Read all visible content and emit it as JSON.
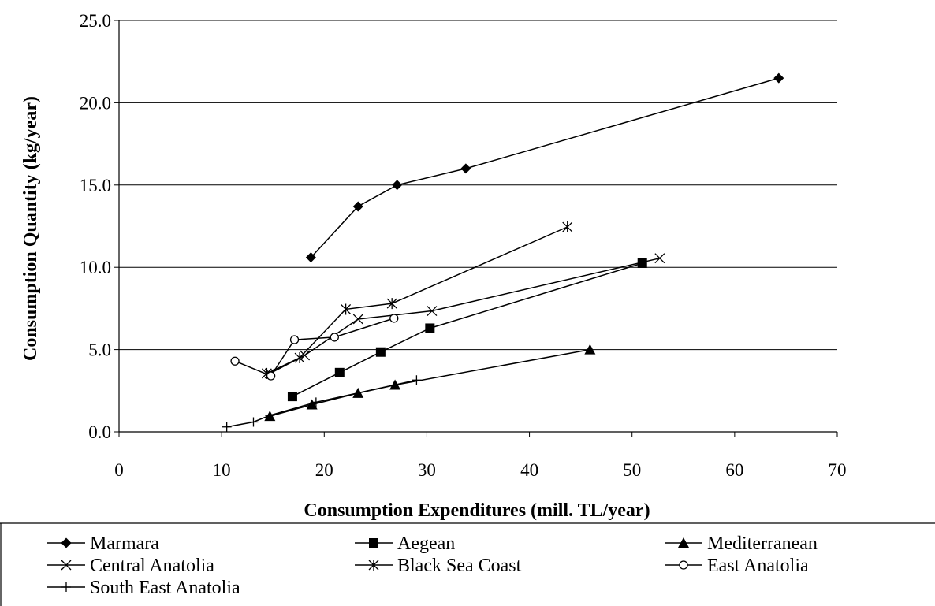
{
  "chart_data": {
    "type": "line",
    "title": "",
    "xlabel": "Consumption Expenditures (mill. TL/year)",
    "ylabel": "Consumption Quantity (kg/year)",
    "xlim": [
      0,
      70
    ],
    "ylim": [
      0,
      25
    ],
    "x_ticks": [
      "0",
      "10",
      "20",
      "30",
      "40",
      "50",
      "60",
      "70"
    ],
    "y_ticks": [
      "0.0",
      "5.0",
      "10.0",
      "15.0",
      "20.0",
      "25.0"
    ],
    "grid": "horizontal major",
    "legend_position": "bottom",
    "line_color": "#000000",
    "series": [
      {
        "name": "Marmara",
        "marker": "diamond",
        "x": [
          18.7,
          23.3,
          27.1,
          33.8,
          64.3
        ],
        "y": [
          10.6,
          13.7,
          15.0,
          16.0,
          21.5
        ]
      },
      {
        "name": "Aegean",
        "marker": "square",
        "x": [
          16.9,
          21.5,
          25.5,
          30.3,
          51.0
        ],
        "y": [
          2.15,
          3.6,
          4.85,
          6.3,
          10.25
        ]
      },
      {
        "name": "Mediterranean",
        "marker": "triangle",
        "x": [
          14.7,
          18.8,
          23.3,
          26.9,
          45.9
        ],
        "y": [
          0.95,
          1.65,
          2.35,
          2.85,
          5.0
        ]
      },
      {
        "name": "Central Anatolia",
        "marker": "x",
        "x": [
          14.7,
          18.1,
          23.3,
          30.5,
          52.7
        ],
        "y": [
          3.55,
          4.65,
          6.85,
          7.35,
          10.55
        ]
      },
      {
        "name": "Black Sea Coast",
        "marker": "star",
        "x": [
          14.4,
          17.6,
          22.1,
          26.6,
          43.7
        ],
        "y": [
          3.55,
          4.5,
          7.45,
          7.8,
          12.45
        ]
      },
      {
        "name": "East Anatolia",
        "marker": "circle",
        "x": [
          11.3,
          14.8,
          17.1,
          21.0,
          26.8
        ],
        "y": [
          4.3,
          3.4,
          5.6,
          5.75,
          6.9
        ]
      },
      {
        "name": "South East Anatolia",
        "marker": "plus",
        "x": [
          10.5,
          13.1,
          14.7,
          19.2,
          29.0
        ],
        "y": [
          0.3,
          0.6,
          1.0,
          1.8,
          3.15
        ]
      }
    ]
  }
}
